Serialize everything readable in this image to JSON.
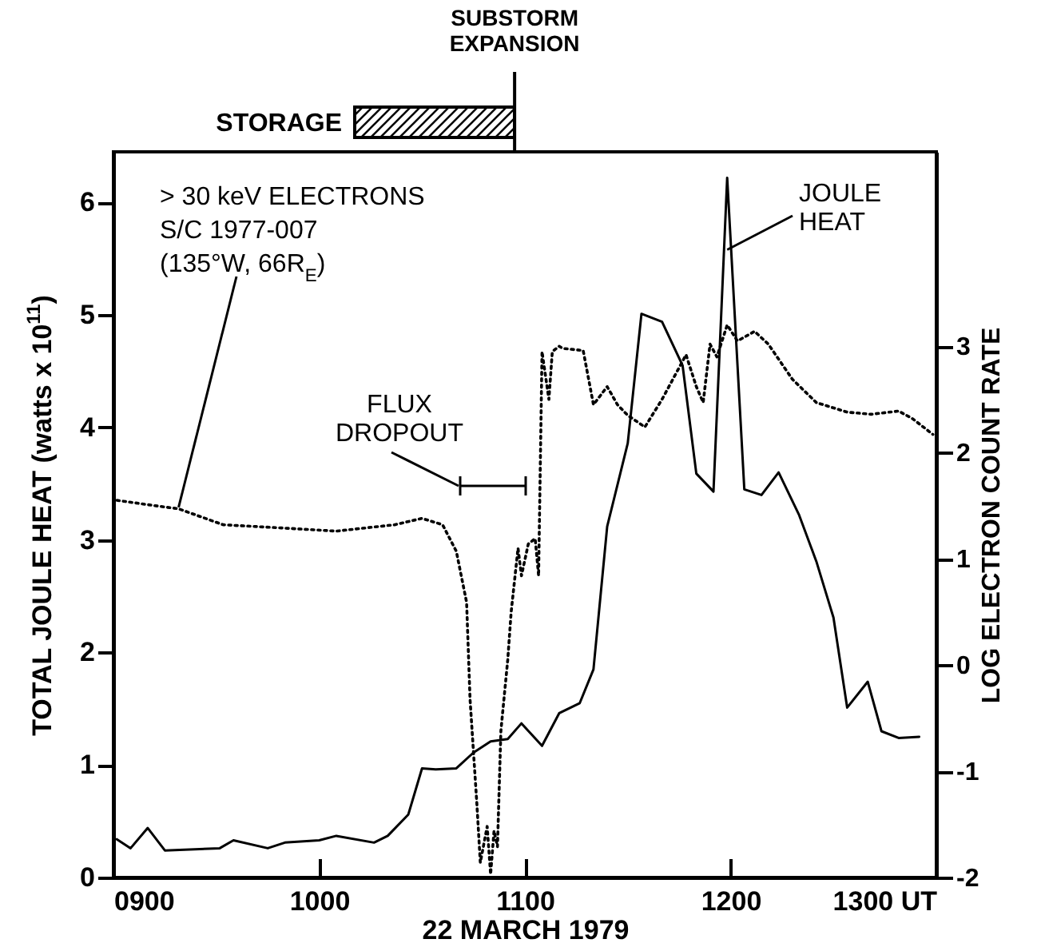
{
  "chart_data": {
    "type": "line",
    "xlabel": "22 MARCH 1979",
    "ylabel": "TOTAL JOULE HEAT (watts x 10$^{11}$)",
    "y2label": "LOG ELECTRON COUNT RATE",
    "xlim": [
      "1979-03-22T09:00",
      "1979-03-22T13:00"
    ],
    "xticks": [
      {
        "value": "1979-03-22T09:00",
        "label": "0900"
      },
      {
        "value": "1979-03-22T10:00",
        "label": "1000"
      },
      {
        "value": "1979-03-22T11:00",
        "label": "1100"
      },
      {
        "value": "1979-03-22T12:00",
        "label": "1200"
      },
      {
        "value": "1979-03-22T13:00",
        "label": "1300 UT"
      }
    ],
    "ylim": [
      0,
      6.45
    ],
    "yticks": [
      0,
      1,
      2,
      3,
      4,
      5,
      6
    ],
    "y2lim": [
      -2,
      4.83
    ],
    "y2ticks": [
      -2,
      -1,
      0,
      1,
      2,
      3
    ],
    "series": [
      {
        "color": "#000000",
        "line_style": "solid",
        "x": [
          "1979-03-22T09:01",
          "1979-03-22T09:05",
          "1979-03-22T09:10",
          "1979-03-22T09:15",
          "1979-03-22T09:31",
          "1979-03-22T09:35",
          "1979-03-22T09:45",
          "1979-03-22T09:50",
          "1979-03-22T10:00",
          "1979-03-22T10:05",
          "1979-03-22T10:16",
          "1979-03-22T10:20",
          "1979-03-22T10:26",
          "1979-03-22T10:30",
          "1979-03-22T10:34",
          "1979-03-22T10:40",
          "1979-03-22T10:45",
          "1979-03-22T10:50",
          "1979-03-22T10:55",
          "1979-03-22T10:59",
          "1979-03-22T11:05",
          "1979-03-22T11:10",
          "1979-03-22T11:16",
          "1979-03-22T11:20",
          "1979-03-22T11:24",
          "1979-03-22T11:30",
          "1979-03-22T11:34",
          "1979-03-22T11:40",
          "1979-03-22T11:46",
          "1979-03-22T11:50",
          "1979-03-22T11:55",
          "1979-03-22T11:59",
          "1979-03-22T12:04",
          "1979-03-22T12:09",
          "1979-03-22T12:14",
          "1979-03-22T12:20",
          "1979-03-22T12:25",
          "1979-03-22T12:30",
          "1979-03-22T12:34",
          "1979-03-22T12:40",
          "1979-03-22T12:44",
          "1979-03-22T12:49",
          "1979-03-22T12:55"
        ],
        "values": [
          0.34,
          0.26,
          0.44,
          0.24,
          0.26,
          0.33,
          0.26,
          0.31,
          0.33,
          0.37,
          0.31,
          0.37,
          0.56,
          0.97,
          0.96,
          0.97,
          1.11,
          1.21,
          1.23,
          1.37,
          1.17,
          1.46,
          1.55,
          1.85,
          3.12,
          3.86,
          5.01,
          4.94,
          4.55,
          3.59,
          3.43,
          6.22,
          3.45,
          3.4,
          3.6,
          3.22,
          2.81,
          2.31,
          1.51,
          1.74,
          1.3,
          1.24,
          1.25
        ]
      },
      {
        "color": "#000000",
        "line_style": "dotted",
        "axis": "y2",
        "x": [
          "1979-03-22T09:01",
          "1979-03-22T09:12",
          "1979-03-22T09:19",
          "1979-03-22T09:32",
          "1979-03-22T09:49",
          "1979-03-22T10:05",
          "1979-03-22T10:22",
          "1979-03-22T10:30",
          "1979-03-22T10:36",
          "1979-03-22T10:40",
          "1979-03-22T10:43",
          "1979-03-22T10:44",
          "1979-03-22T10:46",
          "1979-03-22T10:47",
          "1979-03-22T10:49",
          "1979-03-22T10:50",
          "1979-03-22T10:51",
          "1979-03-22T10:52",
          "1979-03-22T10:53",
          "1979-03-22T10:55",
          "1979-03-22T10:56",
          "1979-03-22T10:58",
          "1979-03-22T10:59",
          "1979-03-22T11:01",
          "1979-03-22T11:03",
          "1979-03-22T11:04",
          "1979-03-22T11:05",
          "1979-03-22T11:07",
          "1979-03-22T11:08",
          "1979-03-22T11:10",
          "1979-03-22T11:11",
          "1979-03-22T11:17",
          "1979-03-22T11:20",
          "1979-03-22T11:24",
          "1979-03-22T11:27",
          "1979-03-22T11:30",
          "1979-03-22T11:35",
          "1979-03-22T11:40",
          "1979-03-22T11:47",
          "1979-03-22T11:50",
          "1979-03-22T11:52",
          "1979-03-22T11:54",
          "1979-03-22T11:56",
          "1979-03-22T11:59",
          "1979-03-22T12:02",
          "1979-03-22T12:07",
          "1979-03-22T12:11",
          "1979-03-22T12:18",
          "1979-03-22T12:25",
          "1979-03-22T12:34",
          "1979-03-22T12:41",
          "1979-03-22T12:49",
          "1979-03-22T12:53",
          "1979-03-22T12:59"
        ],
        "values": [
          1.55,
          1.5,
          1.47,
          1.32,
          1.29,
          1.26,
          1.32,
          1.38,
          1.32,
          1.07,
          0.59,
          -0.32,
          -1.31,
          -1.86,
          -1.52,
          -1.97,
          -1.56,
          -1.71,
          -0.62,
          0.05,
          0.5,
          1.1,
          0.84,
          1.14,
          1.19,
          0.84,
          2.95,
          2.5,
          2.95,
          3.0,
          2.98,
          2.96,
          2.45,
          2.62,
          2.45,
          2.35,
          2.24,
          2.5,
          2.92,
          2.62,
          2.47,
          3.02,
          2.9,
          3.2,
          3.05,
          3.14,
          3.02,
          2.69,
          2.47,
          2.38,
          2.36,
          2.39,
          2.32,
          2.17
        ]
      }
    ],
    "annotations": [
      {
        "text": "> 30 keV ELECTRONS\nS/C 1977-007\n(135°W, 66R$_{E}$)",
        "x": "1979-03-22T09:19",
        "y": 3.29
      },
      {
        "text": "JOULE HEAT",
        "x": "1979-03-22T11:59",
        "y": 5.58
      },
      "STORAGE",
      "FLUX DROPOUT"
    ],
    "ref_lines": [
      {
        "axis": "x",
        "value": "1979-03-22T10:57",
        "label": "SUBSTORM EXPANSION"
      }
    ],
    "grid": false
  }
}
